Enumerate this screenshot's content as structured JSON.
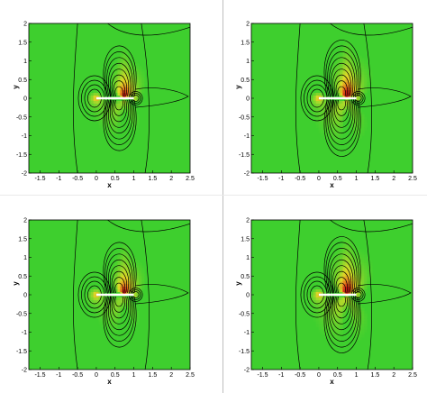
{
  "colors": {
    "background": "#3ecf2e",
    "frame": "#000000",
    "contour_line": "#000000",
    "divider": "#bdbdbd"
  },
  "panels": [
    {
      "id": "top-left",
      "intensity": 0.85
    },
    {
      "id": "top-right",
      "intensity": 1.0
    },
    {
      "id": "bottom-left",
      "intensity": 0.85
    },
    {
      "id": "bottom-right",
      "intensity": 1.05
    }
  ],
  "axes": {
    "xlabel": "x",
    "ylabel": "y",
    "xlim": [
      -1.8,
      2.5
    ],
    "ylim": [
      -2,
      2
    ],
    "xticks": [
      "-1.5",
      "-1",
      "-0.5",
      "0",
      "0.5",
      "1",
      "1.5",
      "2",
      "2.5"
    ],
    "yticks": [
      "2",
      "1.5",
      "1",
      "0.5",
      "0",
      "-0.5",
      "-1",
      "-1.5",
      "-2"
    ]
  }
}
